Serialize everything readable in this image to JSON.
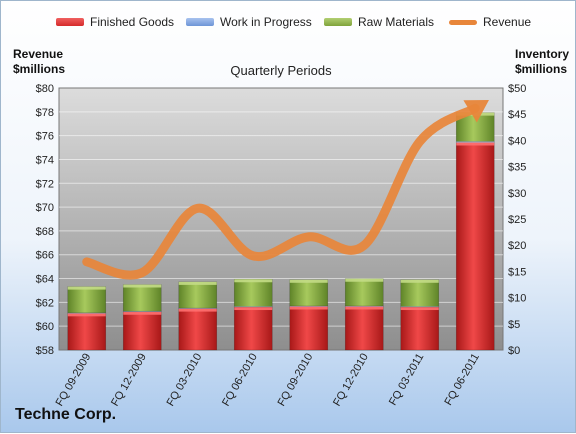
{
  "company": "Techne Corp.",
  "colors": {
    "finished_goods": "#d42a2a",
    "work_in_progress": "#6d95d6",
    "raw_materials": "#7fa33a",
    "revenue": "#e8863a"
  },
  "chart_data": {
    "type": "bar",
    "title": "Quarterly Periods",
    "y_left_label": [
      "Revenue",
      "$millions"
    ],
    "y_right_label": [
      "Inventory",
      "$millions"
    ],
    "left_axis": {
      "min": 58,
      "max": 80,
      "step": 2,
      "tick_labels": [
        "$58",
        "$60",
        "$62",
        "$64",
        "$66",
        "$68",
        "$70",
        "$72",
        "$74",
        "$76",
        "$78",
        "$80"
      ]
    },
    "right_axis": {
      "min": 0,
      "max": 50,
      "step": 5,
      "tick_labels": [
        "$0",
        "$5",
        "$10",
        "$15",
        "$20",
        "$25",
        "$30",
        "$35",
        "$40",
        "$45",
        "$50"
      ]
    },
    "categories": [
      "FQ 09-2009",
      "FQ 12-2009",
      "FQ 03-2010",
      "FQ 06-2010",
      "FQ 09-2010",
      "FQ 12-2010",
      "FQ 03-2011",
      "FQ 06-2011"
    ],
    "stacked": true,
    "series": [
      {
        "name": "Finished Goods",
        "axis": "right",
        "values": [
          7.0,
          7.3,
          7.9,
          8.2,
          8.3,
          8.3,
          8.2,
          39.6
        ]
      },
      {
        "name": "Work in Progress",
        "axis": "right",
        "values": [
          0.1,
          0.1,
          0.1,
          0.1,
          0.1,
          0.1,
          0.1,
          0.2
        ]
      },
      {
        "name": "Raw Materials",
        "axis": "right",
        "values": [
          5.0,
          5.1,
          5.0,
          5.2,
          5.0,
          5.2,
          5.1,
          5.5
        ]
      },
      {
        "name": "Revenue",
        "axis": "left",
        "type": "line",
        "values": [
          65.4,
          64.5,
          69.9,
          65.9,
          67.5,
          66.8,
          75.5,
          78.3
        ]
      }
    ]
  }
}
